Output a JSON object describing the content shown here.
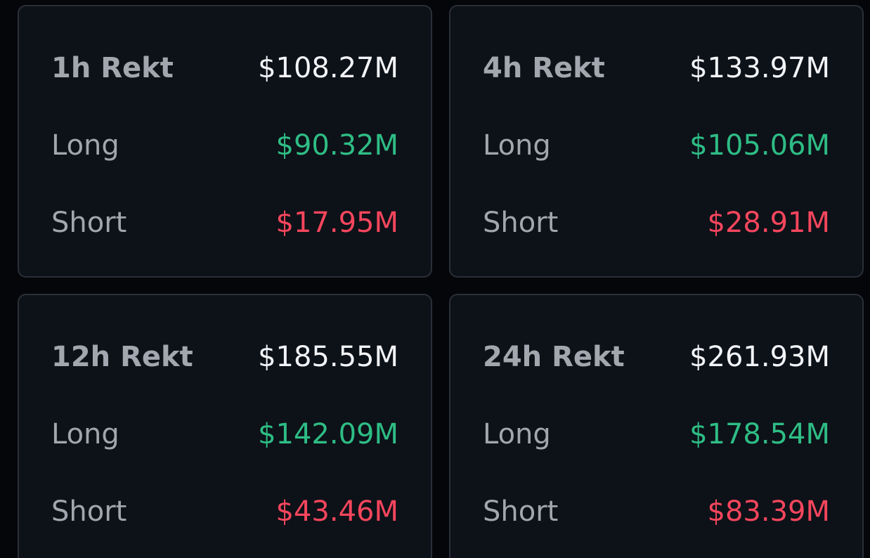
{
  "colors": {
    "background": "#04060a",
    "card": "#0d1118",
    "border": "#2a2f38",
    "label": "#a1a6af",
    "total": "#f2f4f7",
    "long": "#2ebd85",
    "short": "#f6465d"
  },
  "cards": [
    {
      "title": "1h Rekt",
      "total": "$108.27M",
      "long_label": "Long",
      "long": "$90.32M",
      "short_label": "Short",
      "short": "$17.95M"
    },
    {
      "title": "4h Rekt",
      "total": "$133.97M",
      "long_label": "Long",
      "long": "$105.06M",
      "short_label": "Short",
      "short": "$28.91M"
    },
    {
      "title": "12h Rekt",
      "total": "$185.55M",
      "long_label": "Long",
      "long": "$142.09M",
      "short_label": "Short",
      "short": "$43.46M"
    },
    {
      "title": "24h Rekt",
      "total": "$261.93M",
      "long_label": "Long",
      "long": "$178.54M",
      "short_label": "Short",
      "short": "$83.39M"
    }
  ]
}
